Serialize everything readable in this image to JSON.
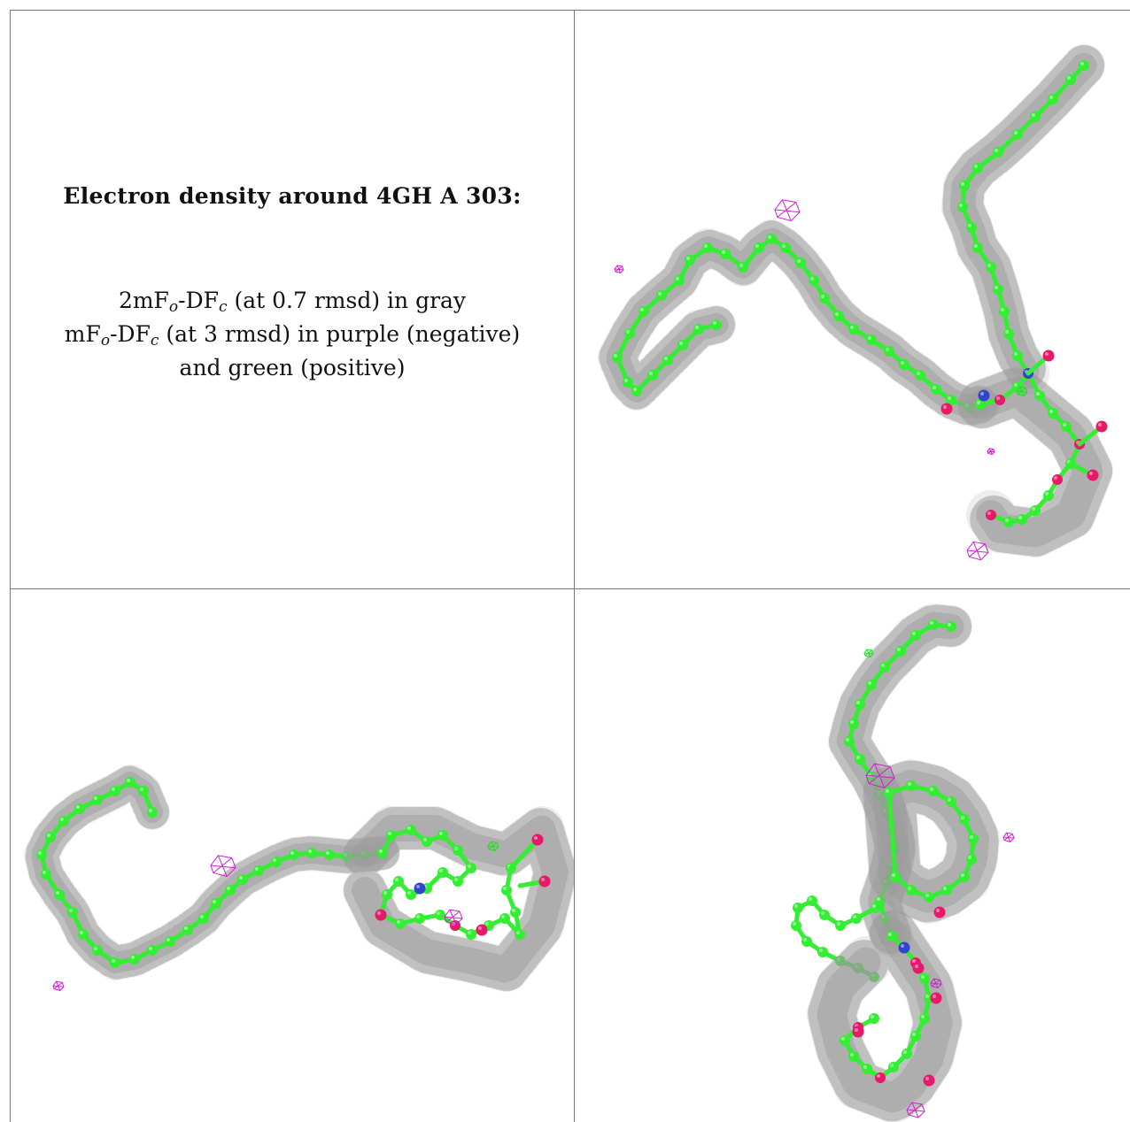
{
  "caption": {
    "title": "Electron density around 4GH A 303:",
    "line1": {
      "pre": "2mF",
      "sub1": "o",
      "mid": "-DF",
      "sub2": "c",
      "post": " (at 0.7 rmsd) in gray"
    },
    "line2": {
      "pre": "mF",
      "sub1": "o",
      "mid": "-DF",
      "sub2": "c",
      "post": " (at 3 rmsd) in purple (negative)"
    },
    "line3": "and green (positive)"
  },
  "colors": {
    "carbon": "#33ee33",
    "oxygen": "#e8186a",
    "nitrogen": "#3344cc",
    "mesh_2fofc": "#9a9a9a",
    "mesh_negative": "#cc22cc",
    "mesh_positive": "#22dd22",
    "grid_lines": "#777777"
  },
  "panels": [
    {
      "name": "view-1"
    },
    {
      "name": "view-2"
    },
    {
      "name": "view-3"
    }
  ]
}
